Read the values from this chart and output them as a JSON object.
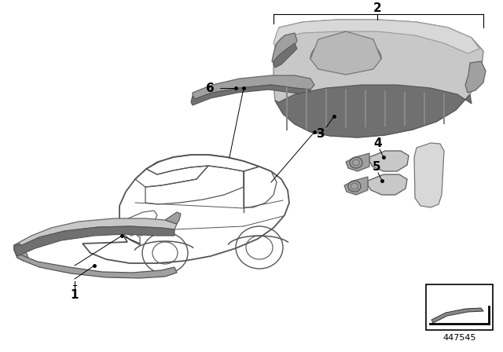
{
  "background_color": "#ffffff",
  "part_number": "447545",
  "line_color": "#000000",
  "car_line_color": "#555555",
  "part_fill_light": "#c8c8c8",
  "part_fill_mid": "#a0a0a0",
  "part_fill_dark": "#707070",
  "part_fill_darker": "#505050",
  "label_fontsize": 11,
  "pn_fontsize": 8
}
